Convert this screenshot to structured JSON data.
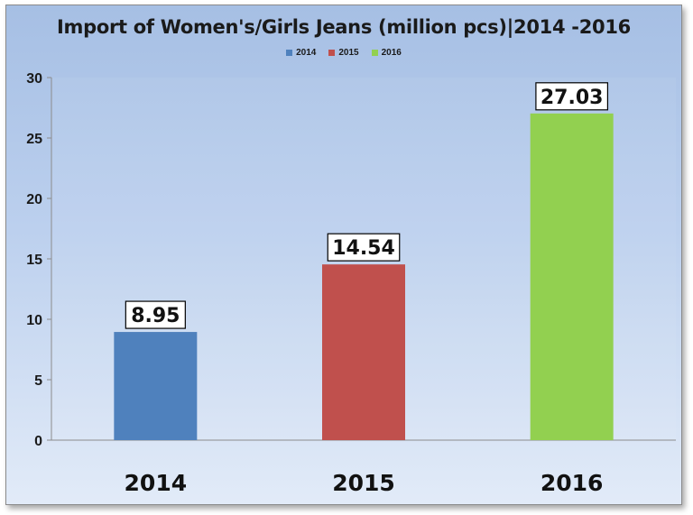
{
  "chart_data": {
    "type": "bar",
    "title": "Import of Women's/Girls Jeans (million pcs)|2014 -2016",
    "categories": [
      "2014",
      "2015",
      "2016"
    ],
    "values": [
      8.95,
      14.54,
      27.03
    ],
    "data_labels": [
      "8.95",
      "14.54",
      "27.03"
    ],
    "colors": [
      "#4f81bd",
      "#c0504d",
      "#92d050"
    ],
    "legend": {
      "position": "top",
      "entries": [
        "2014",
        "2015",
        "2016"
      ]
    },
    "ylim": [
      0,
      30
    ],
    "yticks": [
      0,
      5,
      10,
      15,
      20,
      25,
      30
    ],
    "grid": false
  }
}
